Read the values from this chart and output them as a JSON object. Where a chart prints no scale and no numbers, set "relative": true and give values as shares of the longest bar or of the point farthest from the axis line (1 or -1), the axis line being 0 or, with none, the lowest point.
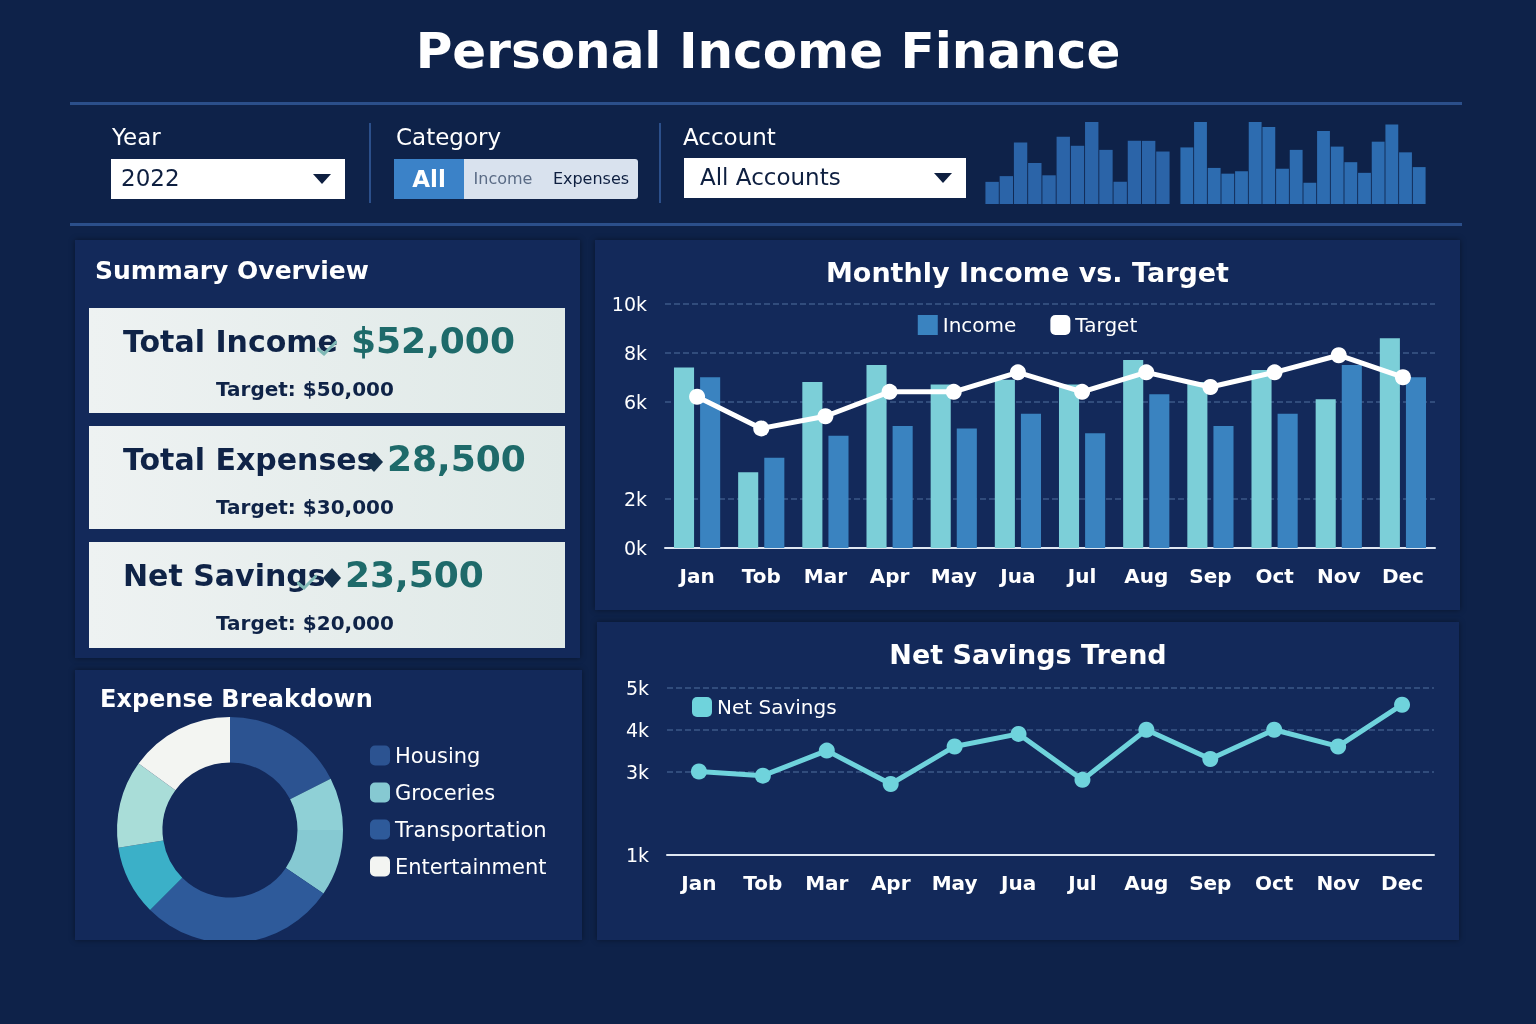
{
  "chart_data": [
    {
      "type": "other",
      "title": "Personal Income Finance",
      "annotations": [
        "Year",
        "2022",
        "Category",
        "All",
        "Income",
        "Expenses",
        "Account",
        "All Accounts"
      ]
    },
    {
      "type": "bar",
      "relative": true,
      "categories": [
        null,
        null,
        null,
        null,
        null,
        null,
        null,
        null,
        null,
        null,
        null,
        null,
        null
      ],
      "series": [
        {
          "color": "#2b64a8",
          "values": [
            0.27,
            0.34,
            0.75,
            0.5,
            0.35,
            0.82,
            0.71,
            1,
            0.66,
            0.27,
            0.77,
            0.77,
            0.64
          ]
        }
      ]
    },
    {
      "type": "bar",
      "relative": true,
      "categories": [
        null,
        null,
        null,
        null,
        null,
        null,
        null,
        null,
        null,
        null,
        null,
        null,
        null,
        null,
        null,
        null,
        null,
        null
      ],
      "series": [
        {
          "color": "#2d6cb0",
          "values": [
            0.69,
            1,
            0.44,
            0.37,
            0.4,
            1,
            0.94,
            0.43,
            0.66,
            0.26,
            0.89,
            0.7,
            0.51,
            0.38,
            0.76,
            0.97,
            0.63,
            0.45
          ]
        }
      ]
    },
    {
      "type": "other",
      "title": "Summary Overview",
      "annotations": [
        "Total Income",
        "$52,000",
        "Target: $50,000",
        "Total Expenses",
        "28,500",
        "Target: $30,000",
        "Net Savings",
        "23,500",
        "Target: $20,000"
      ]
    },
    {
      "type": "bar",
      "title": "Monthly Income vs. Target",
      "categories": [
        "Jan",
        "Tob",
        "Mar",
        "Apr",
        "May",
        "Jua",
        "Jul",
        "Aug",
        "Sep",
        "Oct",
        "Nov",
        "Dec"
      ],
      "series": [
        {
          "color": "#7ccfd8",
          "values": [
            7400,
            3100,
            6800,
            7500,
            6700,
            6900,
            6700,
            7700,
            6800,
            7300,
            6100,
            8600
          ]
        },
        {
          "name": "Income",
          "color": "#3a83c0",
          "values": [
            7000,
            3700,
            4600,
            5000,
            4900,
            5500,
            4700,
            6300,
            5000,
            5500,
            7500,
            7000
          ]
        },
        {
          "name": "Target",
          "type": "line",
          "color": "#ffffff",
          "values": [
            6200,
            4900,
            5400,
            6400,
            6400,
            7200,
            6400,
            7200,
            6600,
            7200,
            7900,
            7000
          ]
        }
      ],
      "ylim": [
        0,
        10000
      ],
      "yticks": [
        {
          "value": 0,
          "label": "0k"
        },
        {
          "value": 2000,
          "label": "2k"
        },
        {
          "value": 6000,
          "label": "6k"
        },
        {
          "value": 8000,
          "label": "8k"
        },
        {
          "value": 10000,
          "label": "10k"
        }
      ],
      "grid": "y",
      "legend": "top",
      "marker": "circle"
    },
    {
      "type": "donut",
      "title": "Expense Breakdown",
      "categories": [
        "Housing",
        null,
        "Groceries",
        "Transportation",
        null,
        null,
        "Entertainment"
      ],
      "values": [
        17.5,
        7.5,
        9.5,
        28,
        10,
        12.5,
        15
      ],
      "colors": [
        "#2c5391",
        "#8fd0d6",
        "#86c9d2",
        "#2e5a9a",
        "#3bb0c8",
        "#a9ddd8",
        "#f3f5f2"
      ],
      "legend": "right"
    },
    {
      "type": "line",
      "title": "Net Savings Trend",
      "categories": [
        "Jan",
        "Tob",
        "Mar",
        "Apr",
        "May",
        "Jua",
        "Jul",
        "Aug",
        "Sep",
        "Oct",
        "Nov",
        "Dec"
      ],
      "series": [
        {
          "name": "Net Savings",
          "color": "#6fd3dc",
          "values": [
            3000,
            2900,
            3500,
            2700,
            3600,
            3900,
            2800,
            4000,
            3300,
            4000,
            3600,
            4600
          ]
        }
      ],
      "ylim": [
        1000,
        5000
      ],
      "yticks": [
        {
          "value": 1000,
          "label": "1k"
        },
        {
          "value": 3000,
          "label": "3k"
        },
        {
          "value": 4000,
          "label": "4k"
        },
        {
          "value": 5000,
          "label": "5k"
        }
      ],
      "grid": "y",
      "legend": "top left",
      "marker": "circle"
    }
  ]
}
